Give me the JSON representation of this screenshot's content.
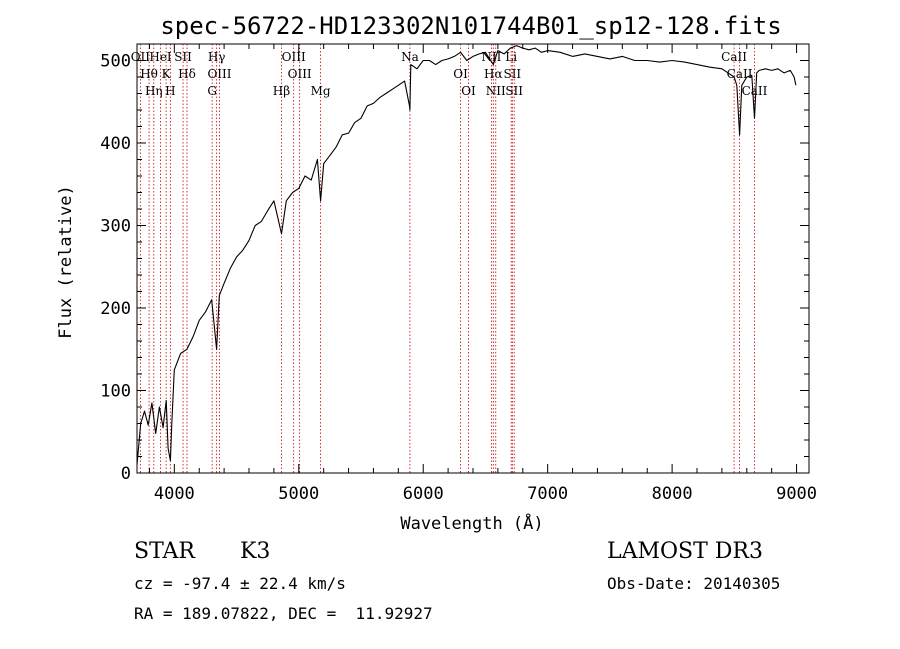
{
  "chart_data": {
    "type": "line",
    "title": "spec-56722-HD123302N101744B01_sp12-128.fits",
    "xlabel": "Wavelength (Å)",
    "ylabel": "Flux (relative)",
    "xlim": [
      3700,
      9100
    ],
    "ylim": [
      0,
      520
    ],
    "xticks": [
      4000,
      5000,
      6000,
      7000,
      8000,
      9000
    ],
    "yticks": [
      0,
      100,
      200,
      300,
      400,
      500
    ],
    "series": [
      {
        "name": "flux",
        "x": [
          3700,
          3730,
          3760,
          3790,
          3820,
          3850,
          3880,
          3910,
          3935,
          3950,
          3968,
          3980,
          4000,
          4050,
          4101,
          4150,
          4200,
          4250,
          4300,
          4340,
          4361,
          4400,
          4450,
          4500,
          4550,
          4600,
          4650,
          4700,
          4750,
          4800,
          4861,
          4900,
          4950,
          5000,
          5050,
          5100,
          5150,
          5175,
          5200,
          5250,
          5300,
          5350,
          5400,
          5450,
          5500,
          5550,
          5600,
          5650,
          5700,
          5750,
          5800,
          5850,
          5890,
          5893,
          5900,
          5950,
          6000,
          6050,
          6100,
          6150,
          6200,
          6250,
          6300,
          6350,
          6400,
          6450,
          6500,
          6563,
          6600,
          6650,
          6700,
          6750,
          6800,
          6850,
          6900,
          6950,
          7000,
          7100,
          7200,
          7300,
          7400,
          7500,
          7600,
          7700,
          7800,
          7900,
          8000,
          8100,
          8200,
          8300,
          8400,
          8450,
          8498,
          8520,
          8542,
          8560,
          8600,
          8640,
          8662,
          8680,
          8700,
          8750,
          8800,
          8850,
          8900,
          8950,
          8980,
          8995
        ],
        "y": [
          10,
          60,
          75,
          58,
          85,
          48,
          80,
          55,
          88,
          30,
          15,
          60,
          125,
          145,
          150,
          165,
          185,
          195,
          210,
          150,
          215,
          230,
          248,
          262,
          270,
          282,
          300,
          305,
          318,
          330,
          290,
          330,
          340,
          345,
          360,
          355,
          380,
          330,
          375,
          385,
          395,
          410,
          412,
          425,
          430,
          445,
          448,
          455,
          460,
          465,
          470,
          475,
          445,
          440,
          495,
          490,
          500,
          500,
          495,
          500,
          502,
          505,
          510,
          500,
          505,
          508,
          510,
          495,
          512,
          508,
          515,
          518,
          515,
          513,
          515,
          510,
          512,
          510,
          505,
          508,
          505,
          502,
          505,
          500,
          500,
          498,
          500,
          498,
          495,
          492,
          490,
          485,
          480,
          470,
          410,
          470,
          480,
          482,
          430,
          485,
          488,
          490,
          488,
          490,
          485,
          488,
          480,
          470
        ]
      }
    ],
    "lines": [
      {
        "wl": 3727,
        "label": "OII"
      },
      {
        "wl": 3797,
        "label": "Hθ"
      },
      {
        "wl": 3835,
        "label": "Hη"
      },
      {
        "wl": 3889,
        "label": "HeI"
      },
      {
        "wl": 3934,
        "label": "K"
      },
      {
        "wl": 3968,
        "label": "H"
      },
      {
        "wl": 4070,
        "label": "SII"
      },
      {
        "wl": 4102,
        "label": "Hδ"
      },
      {
        "wl": 4304,
        "label": "G"
      },
      {
        "wl": 4340,
        "label": "Hγ"
      },
      {
        "wl": 4363,
        "label": "OIII"
      },
      {
        "wl": 4861,
        "label": "Hβ"
      },
      {
        "wl": 4959,
        "label": "OIII"
      },
      {
        "wl": 5007,
        "label": "OIII"
      },
      {
        "wl": 5175,
        "label": "Mg"
      },
      {
        "wl": 5893,
        "label": "Na"
      },
      {
        "wl": 6300,
        "label": "OI"
      },
      {
        "wl": 6364,
        "label": "OI"
      },
      {
        "wl": 6548,
        "label": "NII"
      },
      {
        "wl": 6563,
        "label": "Hα"
      },
      {
        "wl": 6583,
        "label": "NII"
      },
      {
        "wl": 6707,
        "label": "Li"
      },
      {
        "wl": 6716,
        "label": "SII"
      },
      {
        "wl": 6731,
        "label": "SII"
      },
      {
        "wl": 8498,
        "label": "CaII"
      },
      {
        "wl": 8542,
        "label": "CaII"
      },
      {
        "wl": 8662,
        "label": "CaII"
      }
    ],
    "line_color": "#cc0000"
  },
  "info": {
    "object_class": "STAR",
    "subclass": "K3",
    "survey": "LAMOST DR3",
    "cz": "cz = -97.4 ± 22.4 km/s",
    "obs_date": "Obs-Date: 20140305",
    "coords": "RA = 189.07822, DEC =  11.92927"
  }
}
